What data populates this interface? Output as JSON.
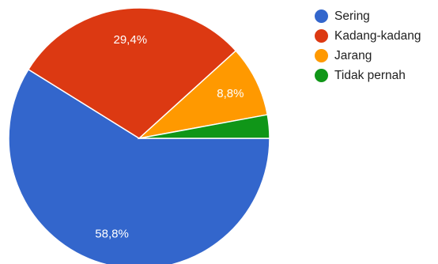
{
  "chart_data": {
    "type": "pie",
    "categories": [
      "Sering",
      "Kadang-kadang",
      "Jarang",
      "Tidak pernah"
    ],
    "values": [
      58.8,
      29.4,
      8.8,
      2.9
    ],
    "data_labels": [
      "58,8%",
      "29,4%",
      "8,8%",
      ""
    ],
    "colors": [
      "#3366cc",
      "#dc3912",
      "#ff9900",
      "#109618"
    ],
    "legend": {
      "position": "right",
      "entries": [
        "Sering",
        "Kadang-kadang",
        "Jarang",
        "Tidak pernah"
      ]
    },
    "title": ""
  }
}
